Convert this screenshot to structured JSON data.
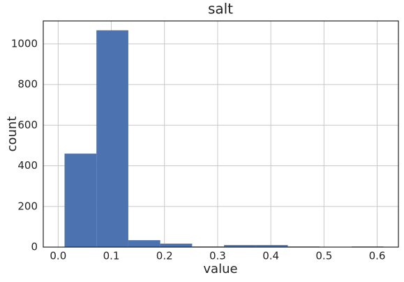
{
  "chart_data": {
    "type": "histogram",
    "title": "salt",
    "xlabel": "value",
    "ylabel": "count",
    "bins": [
      0.012,
      0.072,
      0.132,
      0.192,
      0.252,
      0.312,
      0.372,
      0.432,
      0.492,
      0.552,
      0.612
    ],
    "counts": [
      460,
      1067,
      34,
      17,
      3,
      10,
      10,
      3,
      1,
      3
    ],
    "color": "#4c72b0",
    "xlim": [
      -0.028,
      0.64
    ],
    "ylim": [
      0,
      1113
    ],
    "xticks": [
      {
        "value": 0,
        "label": "0.0"
      },
      0.1,
      0.2,
      0.3,
      0.4,
      0.5,
      0.6
    ],
    "yticks": [
      0,
      200,
      400,
      600,
      800,
      1000
    ],
    "grid": true
  }
}
